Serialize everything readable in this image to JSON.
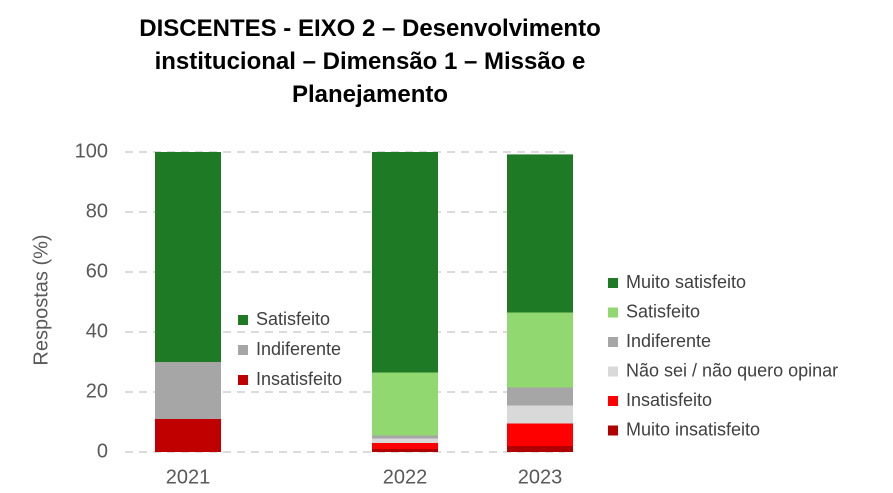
{
  "chart_data": {
    "type": "stacked_bar",
    "title": "DISCENTES - EIXO 2 – Desenvolvimento institucional – Dimensão 1 – Missão e Planejamento",
    "y_label": "Respostas (%)",
    "categories": [
      "2021",
      "2022",
      "2023"
    ],
    "ylim": [
      0,
      100
    ],
    "yticks": [
      0,
      20,
      40,
      60,
      80,
      100
    ],
    "grid": true,
    "series": [
      {
        "name": "Satisfeito",
        "color": "#1f7a26",
        "legend": "left",
        "values": [
          70,
          null,
          null
        ]
      },
      {
        "name": "Indiferente",
        "color": "#a6a6a6",
        "legend": "left",
        "values": [
          19,
          null,
          null
        ]
      },
      {
        "name": "Insatisfeito",
        "color": "#c00000",
        "legend": "left",
        "values": [
          11,
          null,
          null
        ]
      },
      {
        "name": "Muito satisfeito",
        "color": "#1f7a26",
        "legend": "right",
        "values": [
          null,
          73.5,
          52.7
        ]
      },
      {
        "name": "Satisfeito",
        "color": "#92d870",
        "legend": "right",
        "values": [
          null,
          21,
          25
        ]
      },
      {
        "name": "Indiferente",
        "color": "#a6a6a6",
        "legend": "right",
        "values": [
          null,
          1,
          6
        ]
      },
      {
        "name": "Não sei / não quero opinar",
        "color": "#d9d9d9",
        "legend": "right",
        "values": [
          null,
          1.5,
          6
        ]
      },
      {
        "name": "Insatisfeito",
        "color": "#ff0000",
        "legend": "right",
        "values": [
          null,
          2,
          7.5
        ]
      },
      {
        "name": "Muito insatisfeito",
        "color": "#b00000",
        "legend": "right",
        "values": [
          null,
          1,
          2
        ]
      }
    ]
  }
}
